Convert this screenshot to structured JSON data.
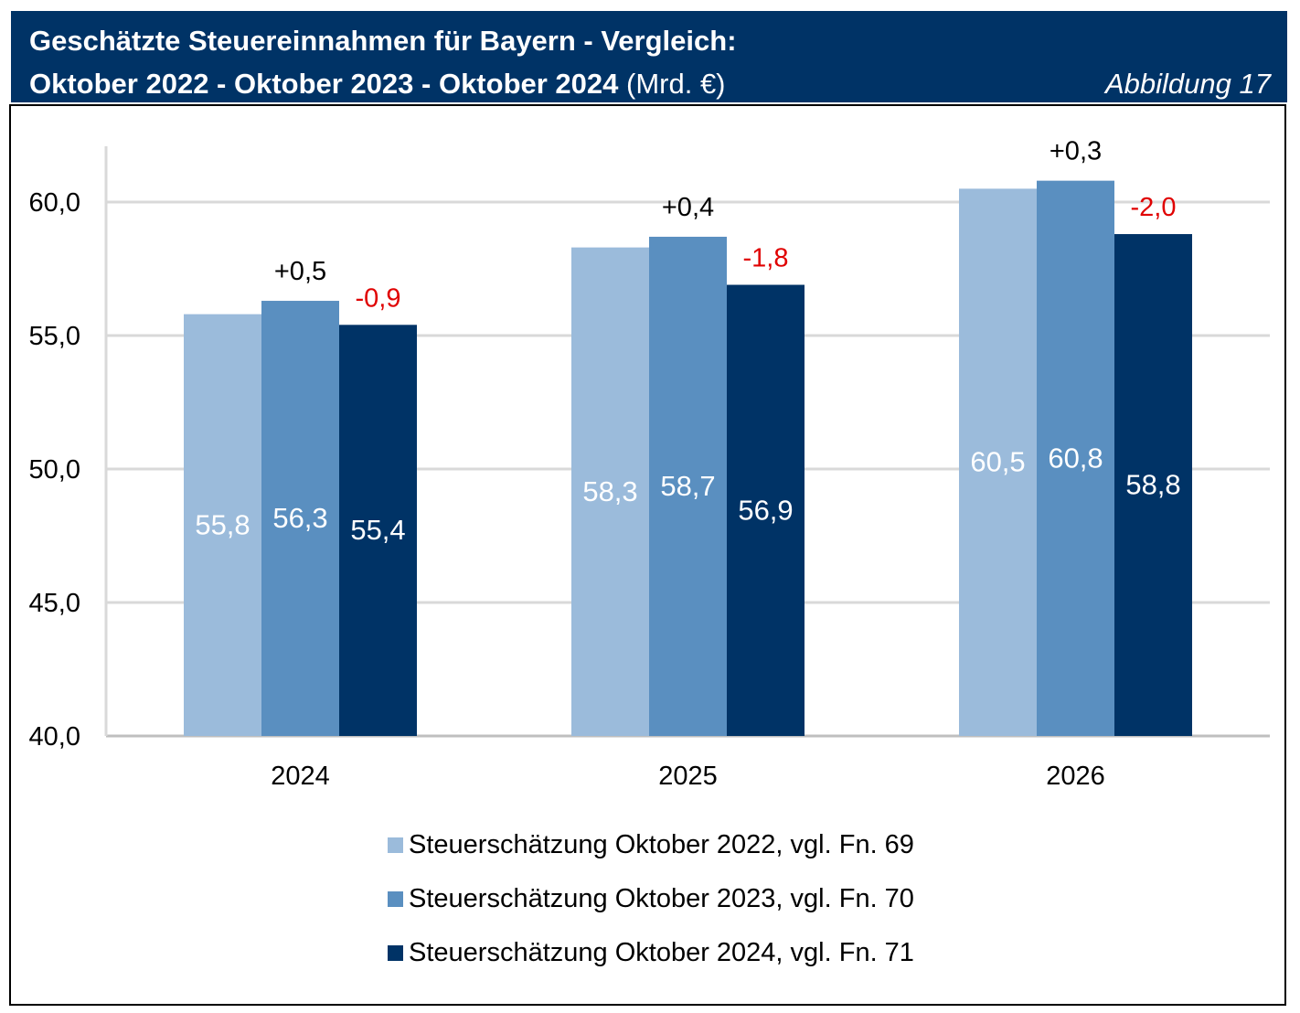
{
  "header": {
    "title_line1": "Geschätzte Steuereinnahmen für Bayern - Vergleich:",
    "title_line2_bold": "Oktober 2022 - Oktober 2023 - Oktober 2024",
    "title_line2_unit": " (Mrd. €)",
    "figure_label": "Abbildung 17"
  },
  "colors": {
    "header_bg": "#003366",
    "series": [
      "#9BBBDB",
      "#5A8FC0",
      "#003366"
    ],
    "diff_positive": "#000000",
    "diff_negative": "#E00000"
  },
  "chart_data": {
    "type": "bar",
    "categories": [
      "2024",
      "2025",
      "2026"
    ],
    "series": [
      {
        "name": "Steuerschätzung Oktober 2022, vgl. Fn. 69",
        "values": [
          55.8,
          58.3,
          60.5
        ],
        "labels": [
          "55,8",
          "58,3",
          "60,5"
        ]
      },
      {
        "name": "Steuerschätzung Oktober 2023, vgl. Fn. 70",
        "values": [
          56.3,
          58.7,
          60.8
        ],
        "labels": [
          "56,3",
          "58,7",
          "60,8"
        ]
      },
      {
        "name": "Steuerschätzung Oktober 2024, vgl. Fn. 71",
        "values": [
          55.4,
          56.9,
          58.8
        ],
        "labels": [
          "55,4",
          "56,9",
          "58,8"
        ]
      }
    ],
    "differences": {
      "series_2023_vs_2022": [
        "+0,5",
        "+0,4",
        "+0,3"
      ],
      "series_2024_vs_2023": [
        "-0,9",
        "-1,8",
        "-2,0"
      ]
    },
    "yticks": [
      40,
      45,
      50,
      55,
      60
    ],
    "ytick_labels": [
      "40,0",
      "45,0",
      "50,0",
      "55,0",
      "60,0"
    ],
    "ylim": [
      40,
      62
    ],
    "title": "Geschätzte Steuereinnahmen für Bayern - Vergleich: Oktober 2022 - Oktober 2023 - Oktober 2024 (Mrd. €)",
    "xlabel": "",
    "ylabel": "",
    "grid": true,
    "legend_position": "bottom"
  }
}
